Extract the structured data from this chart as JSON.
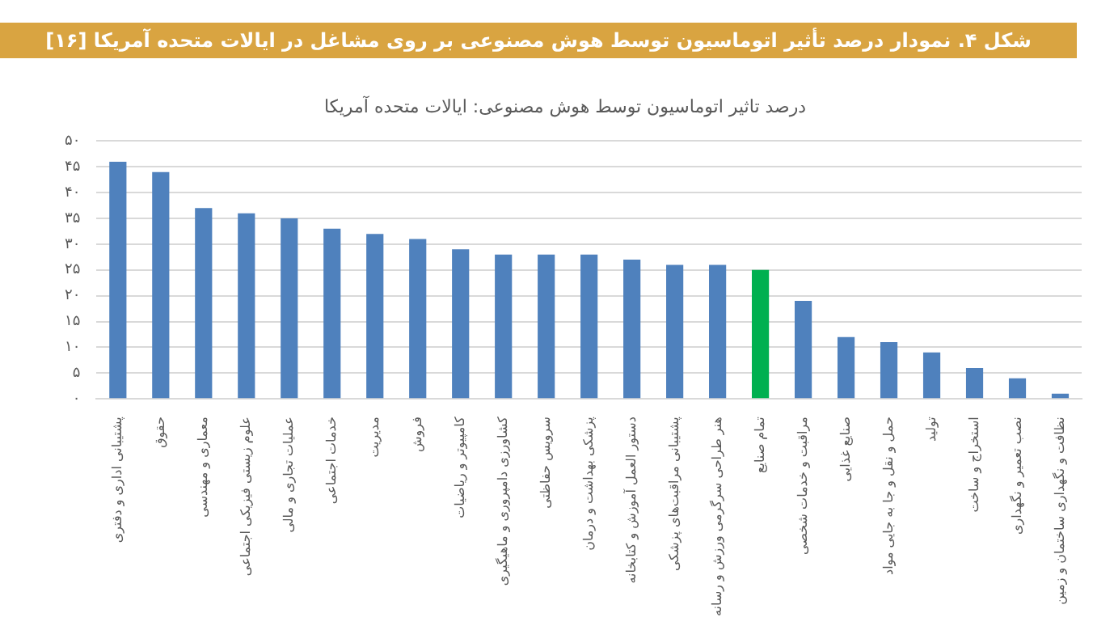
{
  "chart_data": {
    "type": "bar",
    "title": "شکل ۴. نمودار درصد تأثیر اتوماسیون توسط هوش مصنوعی بر روی مشاغل در ایالات متحده آمریکا [۱۶]",
    "subtitle": "درصد تاثیر اتوماسیون توسط هوش مصنوعی: ایالات متحده آمریکا",
    "categories": [
      "پشتیبانی اداری و دفتری",
      "حقوق",
      "معماری و مهندسی",
      "علوم زیستی فیزیکی اجتماعی",
      "عملیات تجاری و مالی",
      "خدمات اجتماعی",
      "مدیریت",
      "فروش",
      "کامپیوتر و ریاضیات",
      "کشاورزی دامپروری و ماهیگیری",
      "سرویس حفاظتی",
      "پزشکی بهداشت و درمان",
      "دستور العمل آموزش و کتابخانه",
      "پشتیبانی مراقبت‌های پزشکی",
      "هنر طراحی سرگرمی ورزش و رسانه",
      "تمام صنایع",
      "مراقبت و خدمات شخصی",
      "صنایع غذایی",
      "حمل و نقل و جا به جایی مواد",
      "تولید",
      "استخراج و ساخت",
      "نصب تعمیر و نگهداری",
      "نظافت و نگهداری ساختمان و زمین"
    ],
    "values": [
      46,
      44,
      37,
      36,
      35,
      33,
      32,
      31,
      29,
      28,
      28,
      28,
      27,
      26,
      26,
      25,
      19,
      12,
      11,
      9,
      6,
      4,
      1
    ],
    "colors": [
      "#4f81bd",
      "#4f81bd",
      "#4f81bd",
      "#4f81bd",
      "#4f81bd",
      "#4f81bd",
      "#4f81bd",
      "#4f81bd",
      "#4f81bd",
      "#4f81bd",
      "#4f81bd",
      "#4f81bd",
      "#4f81bd",
      "#4f81bd",
      "#4f81bd",
      "#00b050",
      "#4f81bd",
      "#4f81bd",
      "#4f81bd",
      "#4f81bd",
      "#4f81bd",
      "#4f81bd",
      "#4f81bd"
    ],
    "ylim": [
      0,
      50
    ],
    "yticks": [
      {
        "value": 0,
        "label": "۰"
      },
      {
        "value": 5,
        "label": "۵"
      },
      {
        "value": 10,
        "label": "۱۰"
      },
      {
        "value": 15,
        "label": "۱۵"
      },
      {
        "value": 20,
        "label": "۲۰"
      },
      {
        "value": 25,
        "label": "۲۵"
      },
      {
        "value": 30,
        "label": "۳۰"
      },
      {
        "value": 35,
        "label": "۳۵"
      },
      {
        "value": 40,
        "label": "۴۰"
      },
      {
        "value": 45,
        "label": "۴۵"
      },
      {
        "value": 50,
        "label": "۵۰"
      }
    ],
    "grid": "y",
    "legend": false
  }
}
